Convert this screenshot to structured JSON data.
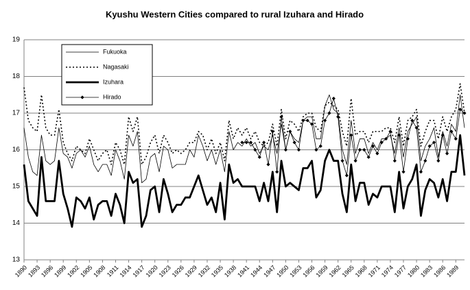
{
  "chart_data": {
    "type": "line",
    "title": "Kyushu Western Cities  compared to rural Izuhara and Hirado",
    "x": [
      1890,
      1891,
      1892,
      1893,
      1894,
      1895,
      1896,
      1897,
      1898,
      1899,
      1900,
      1901,
      1902,
      1903,
      1904,
      1905,
      1906,
      1907,
      1908,
      1909,
      1910,
      1911,
      1912,
      1913,
      1914,
      1915,
      1916,
      1917,
      1918,
      1919,
      1920,
      1921,
      1922,
      1923,
      1924,
      1925,
      1926,
      1927,
      1928,
      1929,
      1930,
      1931,
      1932,
      1933,
      1934,
      1935,
      1936,
      1937,
      1938,
      1939,
      1940,
      1941,
      1942,
      1943,
      1944,
      1945,
      1946,
      1947,
      1948,
      1949,
      1950,
      1951,
      1952,
      1953,
      1954,
      1955,
      1956,
      1957,
      1958,
      1959,
      1960,
      1961,
      1962,
      1963,
      1964,
      1965,
      1966,
      1967,
      1968,
      1969,
      1970,
      1971,
      1972,
      1973,
      1974,
      1975,
      1976,
      1977,
      1978,
      1979,
      1980,
      1981,
      1982,
      1983,
      1984,
      1985,
      1986,
      1987,
      1988,
      1989,
      1990,
      1991
    ],
    "xlim": [
      1890,
      1991
    ],
    "xticks": [
      1890,
      1893,
      1896,
      1899,
      1902,
      1905,
      1908,
      1911,
      1914,
      1917,
      1920,
      1923,
      1926,
      1929,
      1932,
      1935,
      1938,
      1941,
      1944,
      1947,
      1950,
      1953,
      1956,
      1959,
      1962,
      1965,
      1968,
      1971,
      1974,
      1977,
      1980,
      1983,
      1986,
      1989
    ],
    "ylim": [
      13,
      19
    ],
    "yticks": [
      13,
      14,
      15,
      16,
      17,
      18,
      19
    ],
    "grid": true,
    "legend": "upper-left",
    "series": [
      {
        "name": "Fukuoka",
        "color": "#000000",
        "width": 0.8,
        "dash": "none",
        "marker": false,
        "values": [
          16.6,
          15.8,
          15.4,
          15.3,
          16.4,
          15.7,
          15.6,
          15.7,
          16.6,
          15.9,
          15.8,
          15.5,
          15.9,
          16.0,
          15.8,
          16.1,
          15.6,
          15.4,
          15.6,
          15.6,
          15.3,
          16.0,
          15.7,
          15.2,
          16.4,
          16.1,
          16.5,
          15.1,
          15.2,
          15.8,
          15.9,
          15.4,
          16.1,
          16.0,
          15.5,
          15.6,
          15.6,
          15.6,
          16.0,
          15.8,
          16.4,
          16.1,
          15.7,
          16.0,
          15.6,
          16.0,
          15.4,
          16.5,
          16.0,
          16.2,
          16.1,
          16.3,
          16.1,
          16.2,
          15.9,
          16.1,
          16.0,
          16.4,
          15.9,
          16.7,
          16.0,
          16.5,
          16.3,
          16.2,
          16.8,
          16.9,
          16.9,
          16.3,
          16.3,
          17.2,
          17.5,
          17.1,
          17.0,
          16.0,
          15.6,
          16.8,
          15.9,
          16.3,
          16.3,
          15.9,
          16.2,
          16.0,
          16.3,
          16.3,
          16.4,
          15.9,
          16.6,
          15.8,
          16.5,
          16.7,
          16.9,
          15.7,
          16.1,
          16.3,
          16.6,
          15.8,
          16.5,
          16.1,
          16.7,
          16.5,
          17.5,
          16.6
        ]
      },
      {
        "name": "Nagasaki",
        "color": "#000000",
        "width": 1.6,
        "dash": "2 3",
        "marker": false,
        "values": [
          17.7,
          16.8,
          16.6,
          16.5,
          17.5,
          16.6,
          16.4,
          16.4,
          17.1,
          16.2,
          15.9,
          15.7,
          16.1,
          16.0,
          15.9,
          16.3,
          16.0,
          15.7,
          15.9,
          16.0,
          15.6,
          16.2,
          16.0,
          15.6,
          16.9,
          16.5,
          16.9,
          15.6,
          15.8,
          16.2,
          16.4,
          15.9,
          16.4,
          16.2,
          15.9,
          16.0,
          15.9,
          16.0,
          16.2,
          16.2,
          16.5,
          16.4,
          16.0,
          16.3,
          15.9,
          16.2,
          15.7,
          16.8,
          16.3,
          16.6,
          16.4,
          16.6,
          16.3,
          16.5,
          16.2,
          16.1,
          16.2,
          16.7,
          16.1,
          17.1,
          16.3,
          16.8,
          16.7,
          16.5,
          16.9,
          17.0,
          17.0,
          16.6,
          16.5,
          17.2,
          17.3,
          17.2,
          17.1,
          16.5,
          16.1,
          17.4,
          16.4,
          16.5,
          16.5,
          16.2,
          16.5,
          16.5,
          16.5,
          16.6,
          16.6,
          16.2,
          16.9,
          16.1,
          16.8,
          16.9,
          17.1,
          16.1,
          16.5,
          16.8,
          16.8,
          16.3,
          16.9,
          16.5,
          16.9,
          17.1,
          17.8,
          17.0
        ]
      },
      {
        "name": "Izuhara",
        "color": "#000000",
        "width": 2.8,
        "dash": "none",
        "marker": false,
        "values": [
          15.6,
          14.6,
          14.4,
          14.2,
          15.8,
          14.6,
          14.6,
          14.6,
          15.7,
          14.8,
          14.4,
          13.9,
          14.7,
          14.6,
          14.4,
          14.7,
          14.1,
          14.5,
          14.6,
          14.6,
          14.2,
          14.8,
          14.5,
          14.0,
          15.4,
          15.1,
          15.2,
          13.9,
          14.2,
          14.9,
          15.0,
          14.3,
          15.2,
          14.8,
          14.3,
          14.5,
          14.5,
          14.7,
          14.7,
          15.0,
          15.3,
          14.9,
          14.5,
          14.7,
          14.3,
          15.1,
          14.1,
          15.6,
          15.1,
          15.2,
          15.0,
          15.0,
          15.0,
          15.0,
          14.6,
          15.1,
          14.6,
          15.4,
          14.3,
          15.7,
          15.0,
          15.1,
          15.0,
          14.9,
          15.5,
          15.5,
          15.7,
          14.7,
          14.9,
          15.7,
          16.0,
          15.7,
          15.7,
          14.8,
          14.3,
          15.6,
          14.6,
          15.1,
          15.1,
          14.5,
          14.8,
          14.7,
          15.0,
          15.0,
          15.0,
          14.3,
          15.4,
          14.4,
          15.0,
          15.2,
          15.6,
          14.2,
          14.9,
          15.2,
          15.1,
          14.7,
          15.2,
          14.6,
          15.4,
          15.4,
          16.4,
          15.3
        ]
      },
      {
        "name": "Hirado",
        "color": "#000000",
        "width": 0.8,
        "dash": "none",
        "marker": true,
        "values": [
          null,
          null,
          null,
          null,
          null,
          null,
          null,
          null,
          null,
          null,
          null,
          null,
          null,
          null,
          null,
          null,
          null,
          null,
          null,
          null,
          null,
          null,
          null,
          null,
          null,
          null,
          null,
          null,
          null,
          null,
          null,
          null,
          null,
          null,
          null,
          null,
          null,
          null,
          null,
          null,
          null,
          null,
          null,
          null,
          null,
          null,
          null,
          null,
          null,
          null,
          16.2,
          16.2,
          16.2,
          16.0,
          15.8,
          16.2,
          15.6,
          16.5,
          15.4,
          16.9,
          16.0,
          16.5,
          16.2,
          16.0,
          16.8,
          16.8,
          16.7,
          16.0,
          16.1,
          16.8,
          17.0,
          17.4,
          16.9,
          15.7,
          15.3,
          16.4,
          15.7,
          16.0,
          16.0,
          15.8,
          16.1,
          15.9,
          16.2,
          16.3,
          16.5,
          15.7,
          16.4,
          15.4,
          16.3,
          16.8,
          16.6,
          15.4,
          15.7,
          16.1,
          16.2,
          15.7,
          16.4,
          15.9,
          16.5,
          16.3,
          17.1,
          17.0
        ]
      }
    ]
  }
}
